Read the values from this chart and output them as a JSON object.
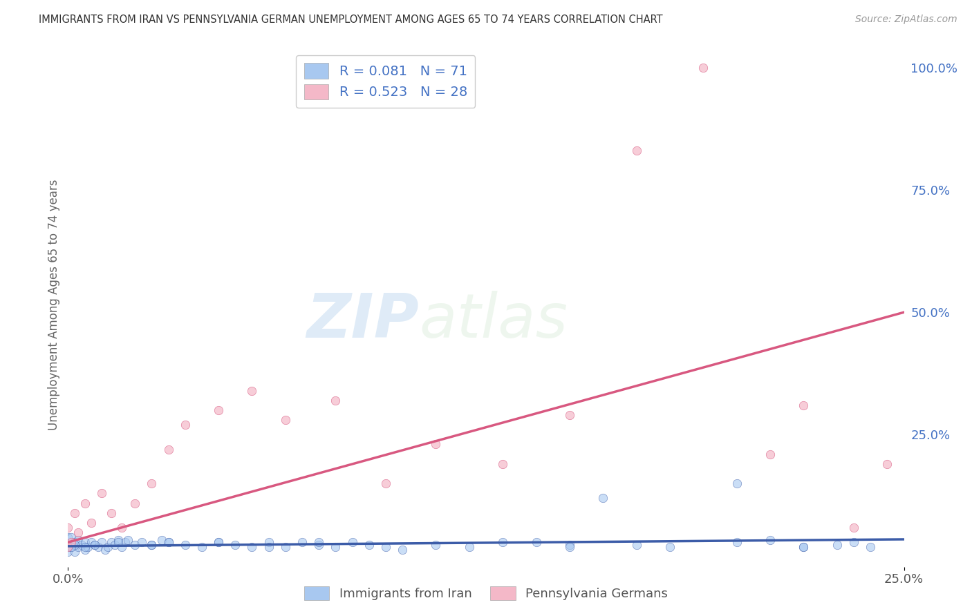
{
  "title": "IMMIGRANTS FROM IRAN VS PENNSYLVANIA GERMAN UNEMPLOYMENT AMONG AGES 65 TO 74 YEARS CORRELATION CHART",
  "source": "Source: ZipAtlas.com",
  "ylabel": "Unemployment Among Ages 65 to 74 years",
  "xlim": [
    0.0,
    0.25
  ],
  "ylim": [
    -0.02,
    1.05
  ],
  "ytick_labels_right": [
    "100.0%",
    "75.0%",
    "50.0%",
    "25.0%"
  ],
  "ytick_positions_right": [
    1.0,
    0.75,
    0.5,
    0.25
  ],
  "blue_color": "#a8c8f0",
  "pink_color": "#f4b8c8",
  "blue_face_color": "#a8c8f0",
  "pink_face_color": "#f4b8c8",
  "blue_line_color": "#3c5ca8",
  "pink_line_color": "#d85880",
  "right_tick_color": "#4472c4",
  "legend_R1": "R = 0.081",
  "legend_N1": "N = 71",
  "legend_R2": "R = 0.523",
  "legend_N2": "N = 28",
  "background_color": "#ffffff",
  "grid_color": "#cccccc",
  "blue_scatter_x": [
    0.0,
    0.0,
    0.0,
    0.001,
    0.001,
    0.002,
    0.002,
    0.003,
    0.003,
    0.004,
    0.005,
    0.005,
    0.006,
    0.007,
    0.008,
    0.009,
    0.01,
    0.011,
    0.012,
    0.013,
    0.014,
    0.015,
    0.016,
    0.017,
    0.018,
    0.02,
    0.022,
    0.025,
    0.028,
    0.03,
    0.035,
    0.04,
    0.045,
    0.05,
    0.055,
    0.06,
    0.065,
    0.07,
    0.075,
    0.08,
    0.085,
    0.09,
    0.1,
    0.11,
    0.12,
    0.13,
    0.15,
    0.16,
    0.18,
    0.2,
    0.21,
    0.22,
    0.23,
    0.235,
    0.24,
    0.22,
    0.2,
    0.17,
    0.15,
    0.14,
    0.095,
    0.075,
    0.06,
    0.045,
    0.03,
    0.025,
    0.015,
    0.008,
    0.005,
    0.002,
    0.001
  ],
  "blue_scatter_y": [
    0.02,
    0.04,
    0.01,
    0.02,
    0.04,
    0.01,
    0.03,
    0.02,
    0.035,
    0.025,
    0.015,
    0.03,
    0.02,
    0.03,
    0.025,
    0.02,
    0.03,
    0.015,
    0.02,
    0.03,
    0.025,
    0.035,
    0.02,
    0.03,
    0.035,
    0.025,
    0.03,
    0.025,
    0.035,
    0.03,
    0.025,
    0.02,
    0.03,
    0.025,
    0.02,
    0.03,
    0.02,
    0.03,
    0.025,
    0.02,
    0.03,
    0.025,
    0.015,
    0.025,
    0.02,
    0.03,
    0.025,
    0.12,
    0.02,
    0.03,
    0.035,
    0.02,
    0.025,
    0.03,
    0.02,
    0.02,
    0.15,
    0.025,
    0.02,
    0.03,
    0.02,
    0.03,
    0.02,
    0.03,
    0.03,
    0.025,
    0.03,
    0.025,
    0.02,
    0.025,
    0.02
  ],
  "pink_scatter_x": [
    0.0,
    0.0,
    0.001,
    0.002,
    0.003,
    0.005,
    0.007,
    0.01,
    0.013,
    0.016,
    0.02,
    0.025,
    0.03,
    0.035,
    0.045,
    0.055,
    0.065,
    0.08,
    0.095,
    0.11,
    0.13,
    0.15,
    0.17,
    0.19,
    0.21,
    0.22,
    0.235,
    0.245
  ],
  "pink_scatter_y": [
    0.02,
    0.06,
    0.03,
    0.09,
    0.05,
    0.11,
    0.07,
    0.13,
    0.09,
    0.06,
    0.11,
    0.15,
    0.22,
    0.27,
    0.3,
    0.34,
    0.28,
    0.32,
    0.15,
    0.23,
    0.19,
    0.29,
    0.83,
    1.0,
    0.21,
    0.31,
    0.06,
    0.19
  ],
  "blue_trend_x": [
    0.0,
    0.25
  ],
  "blue_trend_y": [
    0.022,
    0.036
  ],
  "pink_trend_x": [
    0.0,
    0.25
  ],
  "pink_trend_y": [
    0.03,
    0.5
  ]
}
